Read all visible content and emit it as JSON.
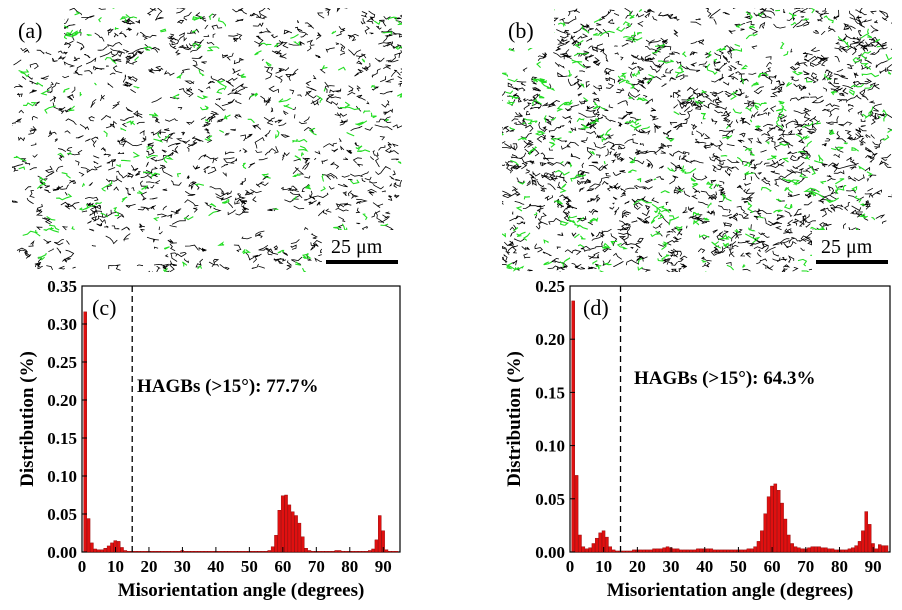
{
  "maps": [
    {
      "label": "(a)",
      "scale_bar_text": "25 μm",
      "boundary_colors": [
        "#000000",
        "#22dd22"
      ],
      "boundary_density": 0.55,
      "green_fraction": 0.18
    },
    {
      "label": "(b)",
      "scale_bar_text": "25 μm",
      "boundary_colors": [
        "#000000",
        "#22dd22"
      ],
      "boundary_density": 0.85,
      "green_fraction": 0.22
    }
  ],
  "colors": {
    "bar": "#e01010",
    "bar_edge": "#8a0000",
    "threshold_line": "#000000"
  },
  "chart_data": [
    {
      "type": "bar",
      "panel_label": "(c)",
      "title": "",
      "xlabel": "Misorientation angle (degrees)",
      "ylabel": "Distribution (%)",
      "xlim": [
        0,
        95
      ],
      "ylim": [
        0,
        0.35
      ],
      "xticks": [
        0,
        10,
        20,
        30,
        40,
        50,
        60,
        70,
        80,
        90
      ],
      "yticks": [
        "0.00",
        "0.05",
        "0.10",
        "0.15",
        "0.20",
        "0.25",
        "0.30",
        "0.35"
      ],
      "threshold": 15,
      "annotation": "HAGBs (>15°): 77.7%",
      "bin_width": 1,
      "x": [
        1,
        2,
        3,
        4,
        5,
        6,
        7,
        8,
        9,
        10,
        11,
        12,
        13,
        14,
        15,
        16,
        17,
        18,
        19,
        20,
        21,
        22,
        23,
        24,
        25,
        26,
        27,
        28,
        29,
        30,
        31,
        32,
        33,
        34,
        35,
        36,
        37,
        38,
        39,
        40,
        41,
        42,
        43,
        44,
        45,
        46,
        47,
        48,
        49,
        50,
        51,
        52,
        53,
        54,
        55,
        56,
        57,
        58,
        59,
        60,
        61,
        62,
        63,
        64,
        65,
        66,
        67,
        68,
        69,
        70,
        71,
        72,
        73,
        74,
        75,
        76,
        77,
        78,
        79,
        80,
        81,
        82,
        83,
        84,
        85,
        86,
        87,
        88,
        89,
        90,
        91,
        92,
        93,
        94
      ],
      "values": [
        0.316,
        0.044,
        0.012,
        0.004,
        0.003,
        0.003,
        0.005,
        0.008,
        0.012,
        0.015,
        0.014,
        0.006,
        0.002,
        0.001,
        0.001,
        0.001,
        0.001,
        0.001,
        0.001,
        0.001,
        0.001,
        0.001,
        0.001,
        0.001,
        0.001,
        0.001,
        0.001,
        0.001,
        0.001,
        0.002,
        0.001,
        0.001,
        0.001,
        0.001,
        0.001,
        0.001,
        0.001,
        0.001,
        0.001,
        0.001,
        0.001,
        0.001,
        0.001,
        0.001,
        0.001,
        0.001,
        0.001,
        0.001,
        0.001,
        0.001,
        0.001,
        0.001,
        0.001,
        0.001,
        0.001,
        0.002,
        0.007,
        0.022,
        0.055,
        0.074,
        0.075,
        0.062,
        0.053,
        0.048,
        0.038,
        0.02,
        0.005,
        0.002,
        0.001,
        0.001,
        0.001,
        0.001,
        0.001,
        0.001,
        0.001,
        0.002,
        0.002,
        0.001,
        0.001,
        0.001,
        0.001,
        0.001,
        0.001,
        0.001,
        0.001,
        0.002,
        0.004,
        0.016,
        0.048,
        0.028,
        0.003,
        0.001,
        0.001,
        0.001
      ]
    },
    {
      "type": "bar",
      "panel_label": "(d)",
      "title": "",
      "xlabel": "Misorientation angle (degrees)",
      "ylabel": "Distribution (%)",
      "xlim": [
        0,
        95
      ],
      "ylim": [
        0,
        0.25
      ],
      "xticks": [
        0,
        10,
        20,
        30,
        40,
        50,
        60,
        70,
        80,
        90
      ],
      "yticks": [
        "0.00",
        "0.05",
        "0.10",
        "0.15",
        "0.20",
        "0.25"
      ],
      "threshold": 15,
      "annotation": "HAGBs (>15°): 64.3%",
      "bin_width": 1,
      "x": [
        1,
        2,
        3,
        4,
        5,
        6,
        7,
        8,
        9,
        10,
        11,
        12,
        13,
        14,
        15,
        16,
        17,
        18,
        19,
        20,
        21,
        22,
        23,
        24,
        25,
        26,
        27,
        28,
        29,
        30,
        31,
        32,
        33,
        34,
        35,
        36,
        37,
        38,
        39,
        40,
        41,
        42,
        43,
        44,
        45,
        46,
        47,
        48,
        49,
        50,
        51,
        52,
        53,
        54,
        55,
        56,
        57,
        58,
        59,
        60,
        61,
        62,
        63,
        64,
        65,
        66,
        67,
        68,
        69,
        70,
        71,
        72,
        73,
        74,
        75,
        76,
        77,
        78,
        79,
        80,
        81,
        82,
        83,
        84,
        85,
        86,
        87,
        88,
        89,
        90,
        91,
        92,
        93,
        94
      ],
      "values": [
        0.236,
        0.072,
        0.016,
        0.005,
        0.003,
        0.004,
        0.008,
        0.013,
        0.018,
        0.02,
        0.014,
        0.005,
        0.002,
        0.001,
        0.001,
        0.001,
        0.001,
        0.001,
        0.002,
        0.002,
        0.002,
        0.002,
        0.002,
        0.002,
        0.003,
        0.003,
        0.003,
        0.004,
        0.005,
        0.004,
        0.003,
        0.003,
        0.002,
        0.002,
        0.002,
        0.002,
        0.002,
        0.003,
        0.003,
        0.003,
        0.003,
        0.003,
        0.002,
        0.002,
        0.002,
        0.002,
        0.002,
        0.002,
        0.002,
        0.002,
        0.002,
        0.002,
        0.003,
        0.003,
        0.005,
        0.01,
        0.02,
        0.036,
        0.052,
        0.062,
        0.064,
        0.058,
        0.046,
        0.031,
        0.016,
        0.008,
        0.005,
        0.004,
        0.003,
        0.003,
        0.004,
        0.005,
        0.005,
        0.005,
        0.004,
        0.004,
        0.003,
        0.003,
        0.002,
        0.002,
        0.002,
        0.002,
        0.003,
        0.004,
        0.006,
        0.01,
        0.02,
        0.038,
        0.026,
        0.008,
        0.003,
        0.007,
        0.006,
        0.006
      ]
    }
  ]
}
